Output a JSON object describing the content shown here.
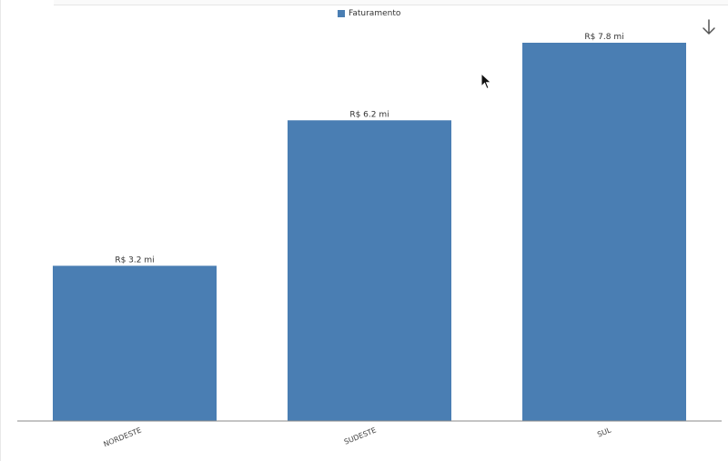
{
  "legend": {
    "label": "Faturamento",
    "color": "#4a7eb3"
  },
  "toolbar": {
    "download_icon": "download-arrow-icon"
  },
  "chart_data": {
    "type": "bar",
    "categories": [
      "NORDESTE",
      "SUDESTE",
      "SUL"
    ],
    "series": [
      {
        "name": "Faturamento",
        "values": [
          3.2,
          6.2,
          7.8
        ],
        "labels": [
          "R$ 3.2 mi",
          "R$ 6.2 mi",
          "R$ 7.8 mi"
        ]
      }
    ],
    "title": "",
    "xlabel": "",
    "ylabel": "",
    "ylim": [
      0,
      7.8
    ],
    "grid": false,
    "legend_position": "top-center",
    "bar_color": "#4a7eb3"
  }
}
